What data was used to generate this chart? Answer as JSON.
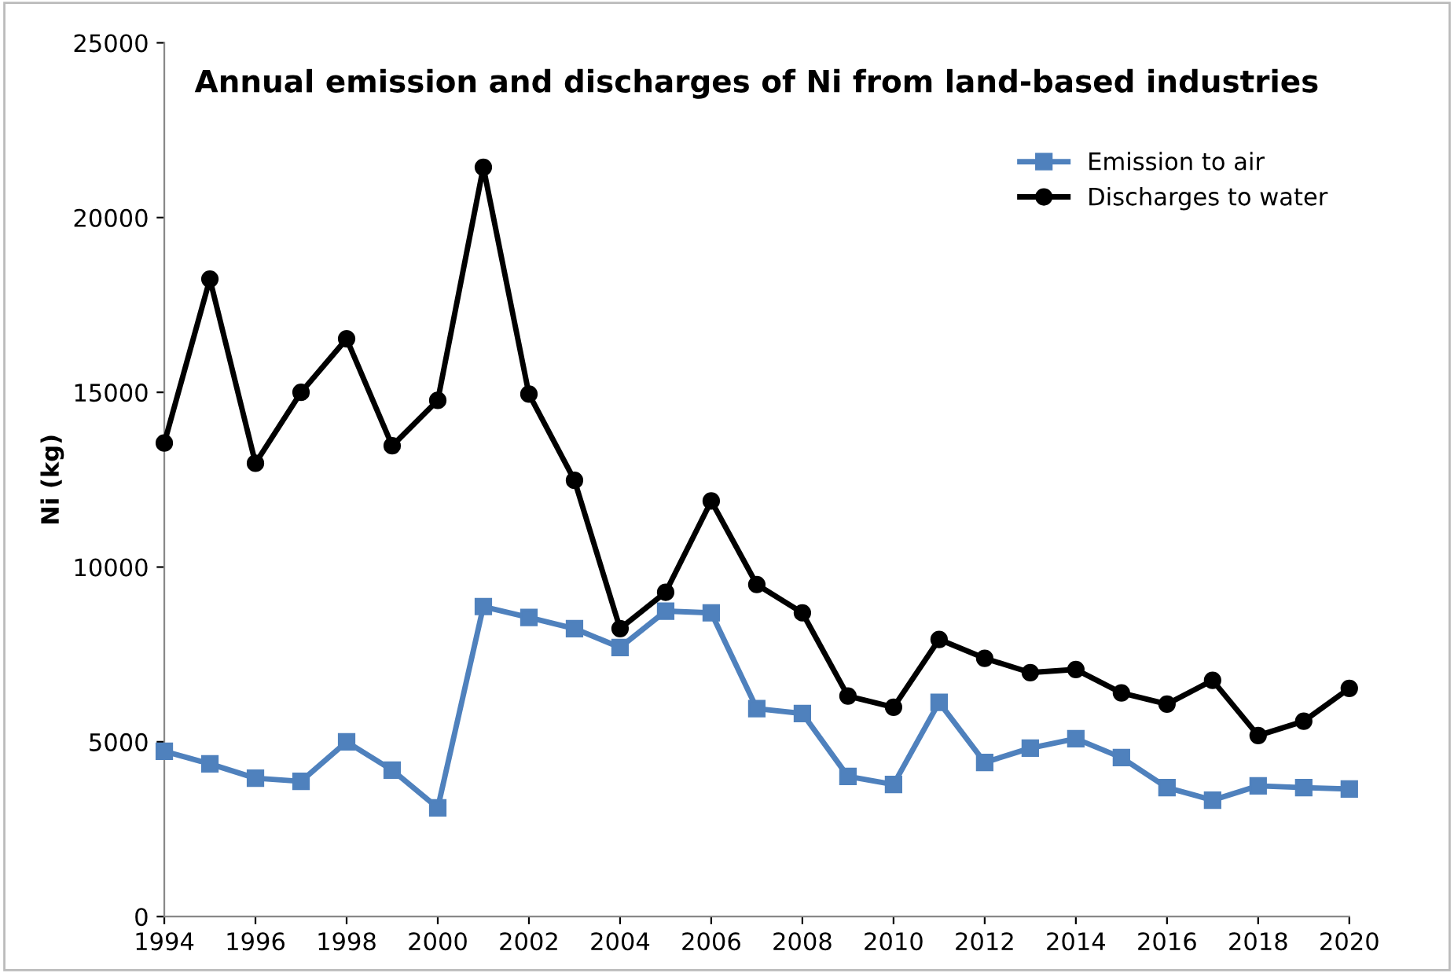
{
  "chart_data": {
    "type": "line",
    "title": "Annual emission and discharges of Ni from land-based industries",
    "ylabel": "Ni (kg)",
    "x": [
      1994,
      1995,
      1996,
      1997,
      1998,
      1999,
      2000,
      2001,
      2002,
      2003,
      2004,
      2005,
      2006,
      2007,
      2008,
      2009,
      2010,
      2011,
      2012,
      2013,
      2014,
      2015,
      2016,
      2017,
      2018,
      2019,
      2020
    ],
    "series": [
      {
        "name": "Emission to air",
        "color": "#4f81bd",
        "marker": "square",
        "values": [
          4730,
          4370,
          3960,
          3870,
          5000,
          4190,
          3110,
          8870,
          8560,
          8240,
          7700,
          8740,
          8690,
          5950,
          5810,
          4010,
          3780,
          6130,
          4410,
          4820,
          5090,
          4550,
          3690,
          3330,
          3740,
          3690,
          3650
        ]
      },
      {
        "name": "Discharges to water",
        "color": "#000000",
        "marker": "circle",
        "values": [
          13550,
          18240,
          12970,
          15000,
          16530,
          13470,
          14770,
          21440,
          14950,
          12480,
          8240,
          9280,
          11890,
          9500,
          8690,
          6310,
          5990,
          7930,
          7390,
          6980,
          7070,
          6400,
          6080,
          6760,
          5180,
          5590,
          6530
        ]
      }
    ],
    "xlim": [
      1994,
      2020
    ],
    "xticks": [
      1994,
      1996,
      1998,
      2000,
      2002,
      2004,
      2006,
      2008,
      2010,
      2012,
      2014,
      2016,
      2018,
      2020
    ],
    "ylim": [
      0,
      25000
    ],
    "yticks": [
      0,
      5000,
      10000,
      15000,
      20000,
      25000
    ],
    "grid": false,
    "legend": "top right",
    "line_style": "solid"
  }
}
